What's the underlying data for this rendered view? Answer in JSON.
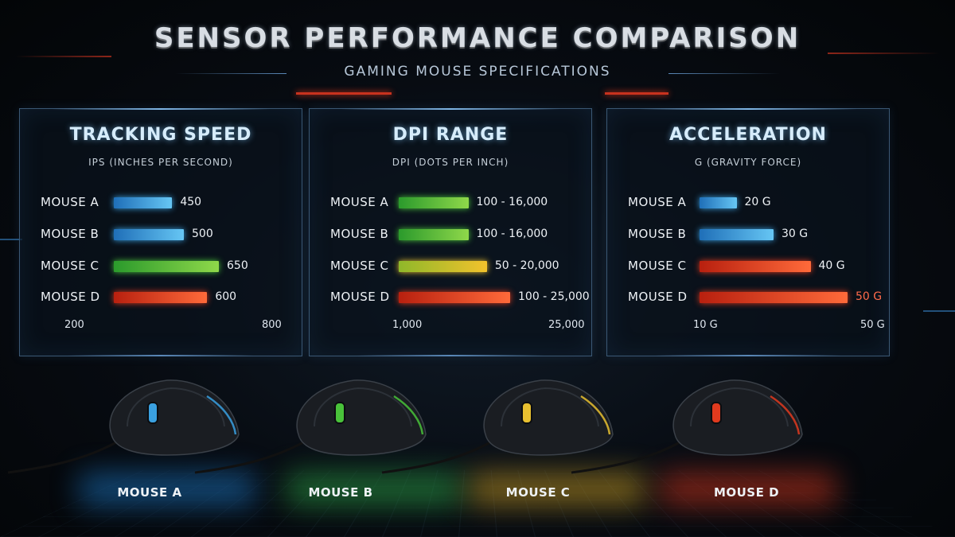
{
  "title": "SENSOR PERFORMANCE COMPARISON",
  "subtitle": "GAMING MOUSE SPECIFICATIONS",
  "colors": {
    "blue": "#3aa0e0",
    "green": "#49c23a",
    "yellow": "#e8c030",
    "red": "#e03a1e",
    "panel_border": "#3b5874"
  },
  "chart_data": [
    {
      "type": "bar",
      "title": "TRACKING SPEED",
      "unit_label": "IPS (INCHES PER SECOND)",
      "categories": [
        "MOUSE A",
        "MOUSE B",
        "MOUSE C",
        "MOUSE D"
      ],
      "values": [
        450,
        500,
        650,
        600
      ],
      "value_labels": [
        "450",
        "500",
        "650",
        "600"
      ],
      "xlim": [
        200,
        800
      ],
      "axis_labels": [
        "200",
        "800"
      ],
      "orientation": "horizontal",
      "colors": [
        "blue",
        "blue",
        "green",
        "red"
      ]
    },
    {
      "type": "bar",
      "title": "DPI RANGE",
      "unit_label": "DPI (DOTS PER INCH)",
      "categories": [
        "MOUSE A",
        "MOUSE B",
        "MOUSE C",
        "MOUSE D"
      ],
      "values": [
        16000,
        16000,
        20000,
        25000
      ],
      "value_labels": [
        "100 - 16,000",
        "100 - 16,000",
        "50 - 20,000",
        "100 - 25,000"
      ],
      "xlim": [
        1000,
        25000
      ],
      "axis_labels": [
        "1,000",
        "25,000"
      ],
      "orientation": "horizontal",
      "colors": [
        "green",
        "green",
        "yellow",
        "red"
      ]
    },
    {
      "type": "bar",
      "title": "ACCELERATION",
      "unit_label": "G  (GRAVITY FORCE)",
      "categories": [
        "MOUSE A",
        "MOUSE B",
        "MOUSE C",
        "MOUSE D"
      ],
      "values": [
        20,
        30,
        40,
        50
      ],
      "value_labels": [
        "20 G",
        "30 G",
        "40 G",
        "50 G"
      ],
      "xlim": [
        10,
        50
      ],
      "axis_labels": [
        "10 G",
        "50 G"
      ],
      "orientation": "horizontal",
      "colors": [
        "blue",
        "blue",
        "red",
        "red"
      ]
    }
  ],
  "mice": [
    {
      "label": "MOUSE A",
      "accent": "blue"
    },
    {
      "label": "MOUSE B",
      "accent": "green"
    },
    {
      "label": "MOUSE C",
      "accent": "yellow"
    },
    {
      "label": "MOUSE D",
      "accent": "red"
    }
  ]
}
